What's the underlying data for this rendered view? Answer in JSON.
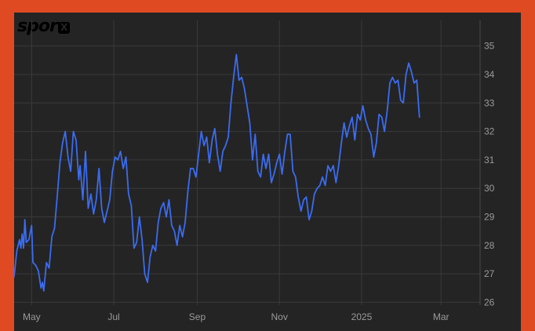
{
  "logo": {
    "text": "spor",
    "mark": "X"
  },
  "colors": {
    "frame_border": "#e04a22",
    "background": "#242424",
    "grid": "#3a3a3a",
    "line": "#3b6cf0",
    "tick_text": "#9a9a9a"
  },
  "chart_data": {
    "type": "line",
    "title": "",
    "xlabel": "",
    "ylabel": "",
    "grid": true,
    "y_axis_side": "right",
    "ylim": [
      25.9,
      35.9
    ],
    "yticks": [
      26,
      27,
      28,
      29,
      30,
      31,
      32,
      33,
      34,
      35
    ],
    "xlim": [
      "2024-04-18",
      "2025-03-30"
    ],
    "xticks": [
      {
        "label": "May",
        "date": "2024-05-01"
      },
      {
        "label": "Jul",
        "date": "2024-07-01"
      },
      {
        "label": "Sep",
        "date": "2024-09-01"
      },
      {
        "label": "Nov",
        "date": "2024-11-01"
      },
      {
        "label": "2025",
        "date": "2025-01-01"
      },
      {
        "label": "Mar",
        "date": "2025-03-01"
      }
    ],
    "series": [
      {
        "values": [
          [
            "2024-04-18",
            26.9
          ],
          [
            "2024-04-20",
            27.8
          ],
          [
            "2024-04-22",
            28.2
          ],
          [
            "2024-04-23",
            27.9
          ],
          [
            "2024-04-24",
            28.4
          ],
          [
            "2024-04-25",
            27.9
          ],
          [
            "2024-04-26",
            28.9
          ],
          [
            "2024-04-27",
            28.1
          ],
          [
            "2024-04-29",
            28.2
          ],
          [
            "2024-05-01",
            28.7
          ],
          [
            "2024-05-02",
            27.4
          ],
          [
            "2024-05-04",
            27.3
          ],
          [
            "2024-05-06",
            27.1
          ],
          [
            "2024-05-08",
            26.5
          ],
          [
            "2024-05-09",
            26.7
          ],
          [
            "2024-05-10",
            26.4
          ],
          [
            "2024-05-12",
            27.4
          ],
          [
            "2024-05-14",
            27.2
          ],
          [
            "2024-05-16",
            28.3
          ],
          [
            "2024-05-18",
            28.6
          ],
          [
            "2024-05-20",
            29.7
          ],
          [
            "2024-05-22",
            30.9
          ],
          [
            "2024-05-24",
            31.6
          ],
          [
            "2024-05-26",
            32.0
          ],
          [
            "2024-05-28",
            31.1
          ],
          [
            "2024-05-30",
            30.6
          ],
          [
            "2024-06-01",
            32.0
          ],
          [
            "2024-06-03",
            31.7
          ],
          [
            "2024-06-05",
            30.3
          ],
          [
            "2024-06-06",
            30.8
          ],
          [
            "2024-06-08",
            29.6
          ],
          [
            "2024-06-10",
            31.3
          ],
          [
            "2024-06-12",
            29.3
          ],
          [
            "2024-06-14",
            29.8
          ],
          [
            "2024-06-16",
            29.1
          ],
          [
            "2024-06-18",
            29.6
          ],
          [
            "2024-06-20",
            30.7
          ],
          [
            "2024-06-22",
            29.3
          ],
          [
            "2024-06-24",
            28.8
          ],
          [
            "2024-06-26",
            29.2
          ],
          [
            "2024-06-28",
            29.6
          ],
          [
            "2024-06-30",
            30.6
          ],
          [
            "2024-07-02",
            31.1
          ],
          [
            "2024-07-04",
            31.0
          ],
          [
            "2024-07-06",
            31.3
          ],
          [
            "2024-07-08",
            30.7
          ],
          [
            "2024-07-10",
            31.1
          ],
          [
            "2024-07-12",
            29.8
          ],
          [
            "2024-07-14",
            29.4
          ],
          [
            "2024-07-16",
            27.9
          ],
          [
            "2024-07-18",
            28.1
          ],
          [
            "2024-07-20",
            29.0
          ],
          [
            "2024-07-22",
            28.2
          ],
          [
            "2024-07-24",
            27.0
          ],
          [
            "2024-07-26",
            26.7
          ],
          [
            "2024-07-28",
            27.6
          ],
          [
            "2024-07-30",
            28.0
          ],
          [
            "2024-08-01",
            27.8
          ],
          [
            "2024-08-03",
            28.8
          ],
          [
            "2024-08-05",
            29.3
          ],
          [
            "2024-08-07",
            29.5
          ],
          [
            "2024-08-09",
            29.0
          ],
          [
            "2024-08-11",
            29.6
          ],
          [
            "2024-08-13",
            28.7
          ],
          [
            "2024-08-15",
            28.5
          ],
          [
            "2024-08-17",
            28.0
          ],
          [
            "2024-08-19",
            28.7
          ],
          [
            "2024-08-21",
            28.3
          ],
          [
            "2024-08-23",
            28.8
          ],
          [
            "2024-08-25",
            29.9
          ],
          [
            "2024-08-27",
            30.7
          ],
          [
            "2024-08-29",
            30.7
          ],
          [
            "2024-08-31",
            30.4
          ],
          [
            "2024-09-02",
            31.2
          ],
          [
            "2024-09-04",
            32.0
          ],
          [
            "2024-09-06",
            31.5
          ],
          [
            "2024-09-08",
            31.8
          ],
          [
            "2024-09-10",
            30.9
          ],
          [
            "2024-09-12",
            31.7
          ],
          [
            "2024-09-14",
            32.1
          ],
          [
            "2024-09-16",
            31.2
          ],
          [
            "2024-09-18",
            30.6
          ],
          [
            "2024-09-20",
            31.3
          ],
          [
            "2024-09-22",
            31.5
          ],
          [
            "2024-09-24",
            31.8
          ],
          [
            "2024-09-26",
            33.0
          ],
          [
            "2024-09-28",
            33.9
          ],
          [
            "2024-09-30",
            34.7
          ],
          [
            "2024-10-02",
            33.8
          ],
          [
            "2024-10-04",
            33.9
          ],
          [
            "2024-10-06",
            33.5
          ],
          [
            "2024-10-08",
            32.9
          ],
          [
            "2024-10-10",
            32.3
          ],
          [
            "2024-10-12",
            31.0
          ],
          [
            "2024-10-14",
            31.9
          ],
          [
            "2024-10-16",
            30.6
          ],
          [
            "2024-10-18",
            30.4
          ],
          [
            "2024-10-20",
            31.2
          ],
          [
            "2024-10-22",
            30.7
          ],
          [
            "2024-10-24",
            31.2
          ],
          [
            "2024-10-26",
            30.2
          ],
          [
            "2024-10-28",
            30.5
          ],
          [
            "2024-10-30",
            30.9
          ],
          [
            "2024-11-01",
            31.2
          ],
          [
            "2024-11-03",
            30.5
          ],
          [
            "2024-11-05",
            31.3
          ],
          [
            "2024-11-07",
            31.9
          ],
          [
            "2024-11-09",
            31.9
          ],
          [
            "2024-11-11",
            30.6
          ],
          [
            "2024-11-13",
            30.4
          ],
          [
            "2024-11-15",
            29.7
          ],
          [
            "2024-11-17",
            29.2
          ],
          [
            "2024-11-19",
            29.6
          ],
          [
            "2024-11-21",
            29.7
          ],
          [
            "2024-11-23",
            28.9
          ],
          [
            "2024-11-25",
            29.2
          ],
          [
            "2024-11-27",
            29.8
          ],
          [
            "2024-11-29",
            30.0
          ],
          [
            "2024-12-01",
            30.1
          ],
          [
            "2024-12-03",
            30.4
          ],
          [
            "2024-12-05",
            30.1
          ],
          [
            "2024-12-07",
            30.8
          ],
          [
            "2024-12-09",
            30.6
          ],
          [
            "2024-12-11",
            30.8
          ],
          [
            "2024-12-13",
            30.2
          ],
          [
            "2024-12-15",
            30.8
          ],
          [
            "2024-12-17",
            31.6
          ],
          [
            "2024-12-19",
            32.3
          ],
          [
            "2024-12-21",
            31.8
          ],
          [
            "2024-12-23",
            32.2
          ],
          [
            "2024-12-25",
            32.5
          ],
          [
            "2024-12-27",
            31.7
          ],
          [
            "2024-12-29",
            32.6
          ],
          [
            "2024-12-31",
            32.4
          ],
          [
            "2025-01-02",
            32.9
          ],
          [
            "2025-01-04",
            32.4
          ],
          [
            "2025-01-06",
            32.1
          ],
          [
            "2025-01-08",
            31.9
          ],
          [
            "2025-01-10",
            31.1
          ],
          [
            "2025-01-12",
            31.6
          ],
          [
            "2025-01-14",
            32.6
          ],
          [
            "2025-01-16",
            32.5
          ],
          [
            "2025-01-18",
            32.0
          ],
          [
            "2025-01-20",
            32.7
          ],
          [
            "2025-01-22",
            33.7
          ],
          [
            "2025-01-24",
            33.9
          ],
          [
            "2025-01-26",
            33.7
          ],
          [
            "2025-01-28",
            33.8
          ],
          [
            "2025-01-30",
            33.1
          ],
          [
            "2025-02-01",
            33.0
          ],
          [
            "2025-02-03",
            34.0
          ],
          [
            "2025-02-05",
            34.4
          ],
          [
            "2025-02-07",
            34.1
          ],
          [
            "2025-02-09",
            33.7
          ],
          [
            "2025-02-11",
            33.8
          ],
          [
            "2025-02-13",
            32.5
          ]
        ]
      }
    ]
  }
}
